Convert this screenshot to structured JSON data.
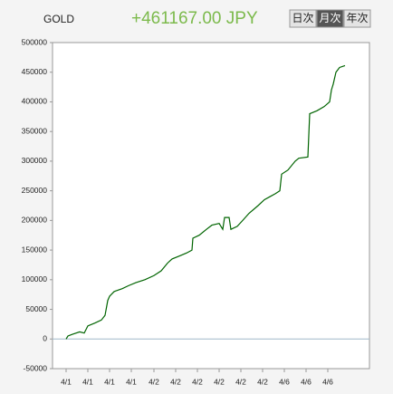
{
  "header": {
    "symbol": "GOLD",
    "profit": "+461167.00 JPY"
  },
  "period_buttons": {
    "labels": [
      "日次",
      "月次",
      "年次"
    ],
    "selected": 1
  },
  "chart_data": {
    "type": "line",
    "x": [
      15,
      17,
      22,
      30,
      35,
      39,
      47,
      54,
      58,
      61,
      63,
      68,
      77,
      84,
      92,
      102,
      112,
      120,
      127,
      132,
      140,
      148,
      154,
      155,
      162,
      170,
      176,
      184,
      188,
      190,
      195,
      197,
      204,
      210,
      217,
      227,
      234,
      240,
      246,
      251,
      253,
      260,
      268,
      272,
      282,
      284,
      292,
      300,
      306,
      308,
      310,
      313,
      317,
      323
    ],
    "series": [
      {
        "name": "GOLD",
        "color": "#006400",
        "values": [
          0,
          5000,
          8000,
          12000,
          10000,
          22000,
          27000,
          32000,
          40000,
          65000,
          72000,
          80000,
          85000,
          90000,
          95000,
          100000,
          107000,
          115000,
          128000,
          135000,
          140000,
          145000,
          150000,
          170000,
          175000,
          185000,
          192000,
          195000,
          185000,
          205000,
          205000,
          185000,
          190000,
          200000,
          212000,
          225000,
          235000,
          240000,
          245000,
          250000,
          278000,
          285000,
          300000,
          305000,
          307000,
          380000,
          385000,
          392000,
          400000,
          420000,
          430000,
          450000,
          458000,
          461167
        ]
      }
    ],
    "xlim": [
      0,
      350
    ],
    "xticks": [
      {
        "value": 15,
        "label": "4/1"
      },
      {
        "value": 39,
        "label": "4/1"
      },
      {
        "value": 63,
        "label": "4/1"
      },
      {
        "value": 87,
        "label": "4/1"
      },
      {
        "value": 112,
        "label": "4/2"
      },
      {
        "value": 136,
        "label": "4/2"
      },
      {
        "value": 160,
        "label": "4/2"
      },
      {
        "value": 184,
        "label": "4/2"
      },
      {
        "value": 208,
        "label": "4/2"
      },
      {
        "value": 232,
        "label": "4/2"
      },
      {
        "value": 256,
        "label": "4/6"
      },
      {
        "value": 280,
        "label": "4/6"
      },
      {
        "value": 304,
        "label": "4/6"
      }
    ],
    "ylim": [
      -50000,
      500000
    ],
    "yticks": [
      -50000,
      0,
      50000,
      100000,
      150000,
      200000,
      250000,
      300000,
      350000,
      400000,
      450000,
      500000
    ]
  }
}
